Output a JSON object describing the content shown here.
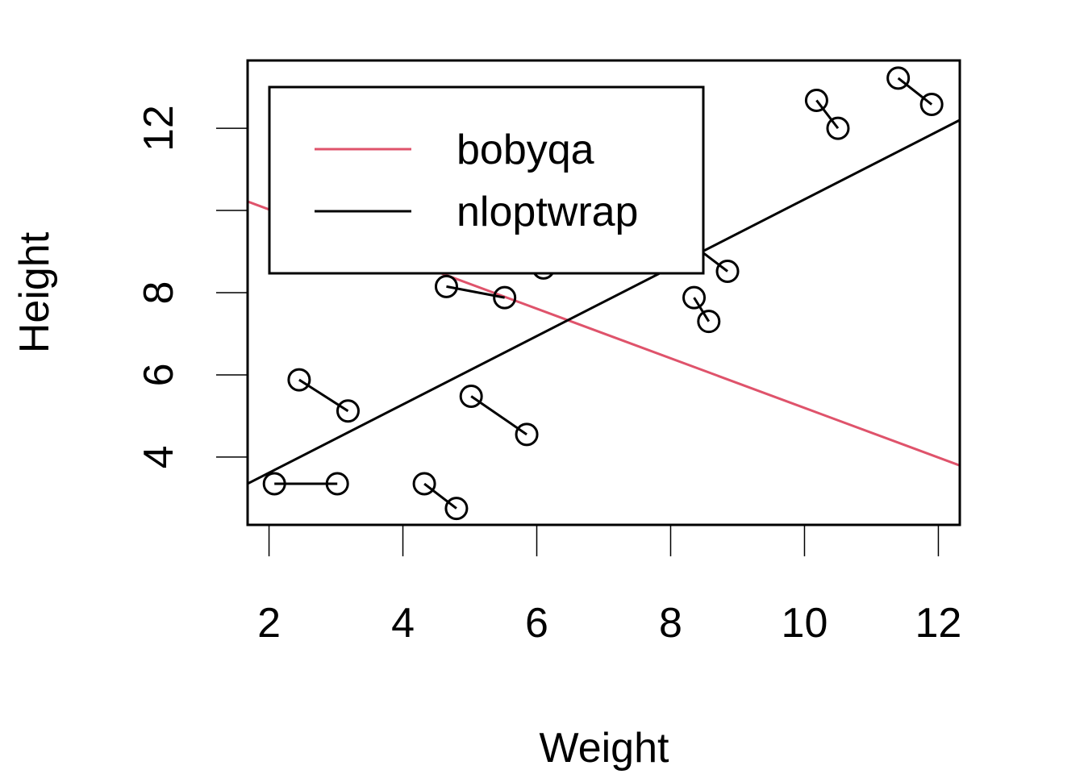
{
  "chart_data": {
    "type": "scatter",
    "title": "",
    "xlabel": "Weight",
    "ylabel": "Height",
    "xlim": [
      1.68,
      12.32
    ],
    "ylim": [
      2.35,
      13.65
    ],
    "x_ticks": [
      2,
      4,
      6,
      8,
      10,
      12
    ],
    "y_ticks": [
      4,
      6,
      8,
      10,
      12
    ],
    "y_tick_labels": [
      "4",
      "6",
      "8",
      "",
      "12"
    ],
    "grid": false,
    "legend_position": "top-left",
    "legend": [
      {
        "label": "bobyqa",
        "color": "#DF536B"
      },
      {
        "label": "nloptwrap",
        "color": "#000000"
      }
    ],
    "pairs": [
      [
        [
          2.08,
          3.35
        ],
        [
          3.02,
          3.35
        ]
      ],
      [
        [
          2.45,
          5.88
        ],
        [
          3.18,
          5.12
        ]
      ],
      [
        [
          4.32,
          3.35
        ],
        [
          4.8,
          2.75
        ]
      ],
      [
        [
          5.02,
          5.48
        ],
        [
          5.85,
          4.55
        ]
      ],
      [
        [
          4.65,
          8.15
        ],
        [
          5.52,
          7.88
        ]
      ],
      [
        [
          5.3,
          9.3
        ],
        [
          6.1,
          8.6
        ]
      ],
      [
        [
          8.35,
          7.88
        ],
        [
          8.57,
          7.3
        ]
      ],
      [
        [
          8.3,
          9.2
        ],
        [
          8.85,
          8.52
        ]
      ],
      [
        [
          10.18,
          12.68
        ],
        [
          10.5,
          12.0
        ]
      ],
      [
        [
          11.4,
          13.22
        ],
        [
          11.9,
          12.58
        ]
      ]
    ],
    "lines": [
      {
        "name": "bobyqa",
        "color": "#DF536B",
        "intercept": 11.232,
        "slope": -0.6036
      },
      {
        "name": "nloptwrap",
        "color": "#000000",
        "intercept": 1.954,
        "slope": 0.8317
      }
    ]
  }
}
